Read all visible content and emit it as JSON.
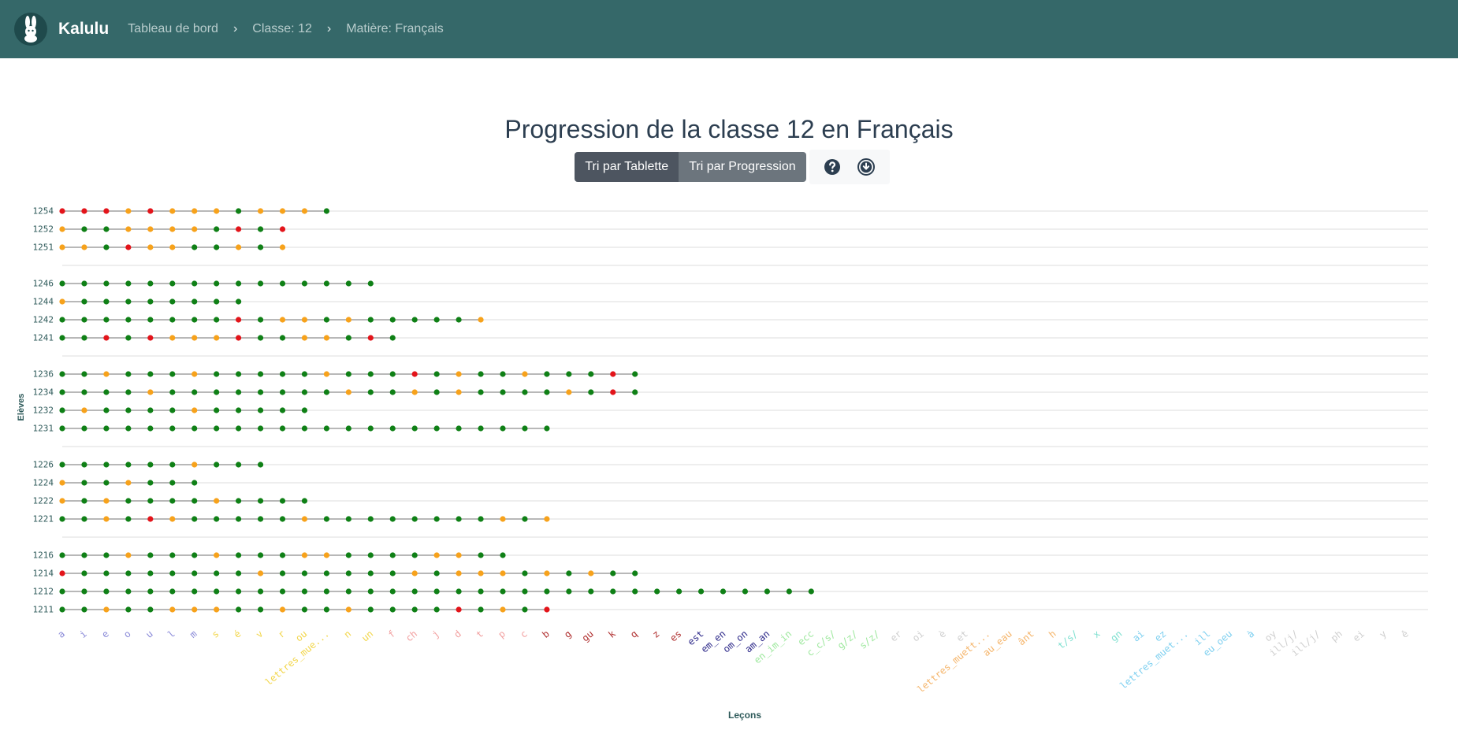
{
  "nav": {
    "brand": "Kalulu",
    "breadcrumbs": [
      "Tableau de bord",
      "Classe: 12",
      "Matière: Français"
    ],
    "separator": "›",
    "bg_color": "#356869"
  },
  "page": {
    "title": "Progression de la classe 12 en Français",
    "sort_buttons": [
      "Tri par Tablette",
      "Tri par Progression"
    ],
    "help_icon": "question-circle-icon",
    "download_icon": "download-circle-icon"
  },
  "chart_data": {
    "type": "scatter",
    "xlabel": "Leçons",
    "ylabel": "Elèves",
    "grid": true,
    "status_colors": {
      "red": "#e3141a",
      "orange": "#f7a21b",
      "green": "#0f8016"
    },
    "lessons": [
      {
        "label": "a",
        "color": "#8c8cd9"
      },
      {
        "label": "i",
        "color": "#8c8cd9"
      },
      {
        "label": "e",
        "color": "#8c8cd9"
      },
      {
        "label": "o",
        "color": "#8c8cd9"
      },
      {
        "label": "u",
        "color": "#8c8cd9"
      },
      {
        "label": "l",
        "color": "#8c8cd9"
      },
      {
        "label": "m",
        "color": "#8c8cd9"
      },
      {
        "label": "s",
        "color": "#f2d64b"
      },
      {
        "label": "é",
        "color": "#f2d64b"
      },
      {
        "label": "v",
        "color": "#f2d64b"
      },
      {
        "label": "r",
        "color": "#f2d64b"
      },
      {
        "label": "ou",
        "color": "#f2d64b"
      },
      {
        "label": "lettres_mue...",
        "color": "#f2d64b"
      },
      {
        "label": "n",
        "color": "#f2d64b"
      },
      {
        "label": "un",
        "color": "#f2d64b"
      },
      {
        "label": "f",
        "color": "#f2a0a0"
      },
      {
        "label": "ch",
        "color": "#f2a0a0"
      },
      {
        "label": "j",
        "color": "#f2a0a0"
      },
      {
        "label": "d",
        "color": "#f2a0a0"
      },
      {
        "label": "t",
        "color": "#f2a0a0"
      },
      {
        "label": "p",
        "color": "#f2a0a0"
      },
      {
        "label": "c",
        "color": "#f2a0a0"
      },
      {
        "label": "b",
        "color": "#b03030"
      },
      {
        "label": "g",
        "color": "#b03030"
      },
      {
        "label": "gu",
        "color": "#b03030"
      },
      {
        "label": "k",
        "color": "#b03030"
      },
      {
        "label": "q",
        "color": "#b03030"
      },
      {
        "label": "z",
        "color": "#b03030"
      },
      {
        "label": "es",
        "color": "#b03030"
      },
      {
        "label": "est",
        "color": "#2e2a8a"
      },
      {
        "label": "em_en",
        "color": "#2e2a8a"
      },
      {
        "label": "om_on",
        "color": "#2e2a8a"
      },
      {
        "label": "am_an",
        "color": "#2e2a8a"
      },
      {
        "label": "en_im_in",
        "color": "#9ee89e"
      },
      {
        "label": "ecc",
        "color": "#9ee89e"
      },
      {
        "label": "c_c/s/",
        "color": "#9ee89e"
      },
      {
        "label": "g/z/",
        "color": "#9ee89e"
      },
      {
        "label": "s/z/",
        "color": "#9ee89e"
      },
      {
        "label": "er",
        "color": "#cfcfcf"
      },
      {
        "label": "oi",
        "color": "#cfcfcf"
      },
      {
        "label": "è",
        "color": "#cfcfcf"
      },
      {
        "label": "et",
        "color": "#cfcfcf"
      },
      {
        "label": "lettres_muett...",
        "color": "#f5b56b"
      },
      {
        "label": "au_eau",
        "color": "#f5b56b"
      },
      {
        "label": "ânt",
        "color": "#f5b56b"
      },
      {
        "label": "h",
        "color": "#f5b56b"
      },
      {
        "label": "t/s/",
        "color": "#7fe0d0"
      },
      {
        "label": "x",
        "color": "#7fe0d0"
      },
      {
        "label": "gn",
        "color": "#7fe0d0"
      },
      {
        "label": "ai",
        "color": "#7fd0f0"
      },
      {
        "label": "ez",
        "color": "#7fd0f0"
      },
      {
        "label": "lettres_muet...",
        "color": "#7fd0f0"
      },
      {
        "label": "ill",
        "color": "#7fd0f0"
      },
      {
        "label": "eu_oeu",
        "color": "#7fd0f0"
      },
      {
        "label": "à",
        "color": "#7fd0f0"
      },
      {
        "label": "oy",
        "color": "#cfcfcf"
      },
      {
        "label": "ill/j/",
        "color": "#cfcfcf"
      },
      {
        "label": "ill/j/",
        "color": "#cfcfcf"
      },
      {
        "label": "ph",
        "color": "#cfcfcf"
      },
      {
        "label": "ei",
        "color": "#cfcfcf"
      },
      {
        "label": "y",
        "color": "#cfcfcf"
      },
      {
        "label": "ê",
        "color": "#cfcfcf"
      }
    ],
    "groups": [
      [
        {
          "student": "1254",
          "status": "RRROROOOGOOOG"
        },
        {
          "student": "1252",
          "status": "OGGOOOOGRGR"
        },
        {
          "student": "1251",
          "status": "OOGROOGGOGO"
        }
      ],
      [
        {
          "student": "1246",
          "status": "GGGGGGGGGGGGGGG"
        },
        {
          "student": "1244",
          "status": "OGGGGGGGG"
        },
        {
          "student": "1242",
          "status": "GGGGGGGGRGOOGOGGGGGO"
        },
        {
          "student": "1241",
          "status": "GGRGROOORGGOOGRG"
        }
      ],
      [
        {
          "student": "1236",
          "status": "GGOGGGOGGGGGOGGGRGOGGOGGGRG"
        },
        {
          "student": "1234",
          "status": "GGGGOGGGGGGGGOGGOGOGGGGOGRG"
        },
        {
          "student": "1232",
          "status": "GOGGGGOGGGGG"
        },
        {
          "student": "1231",
          "status": "GGGGGGGGGGGGGGGGGGGGGGG"
        }
      ],
      [
        {
          "student": "1226",
          "status": "GGGGGGOGGG"
        },
        {
          "student": "1224",
          "status": "OGGOGGG"
        },
        {
          "student": "1222",
          "status": "OGOGGGGOGGGG"
        },
        {
          "student": "1221",
          "status": "GGOGROGGGGGOGGGGGGGGOGO"
        }
      ],
      [
        {
          "student": "1216",
          "status": "GGGOGGGOGGGOOGGGGOOGG"
        },
        {
          "student": "1214",
          "status": "RGGGGGGGGOGGGGGGOGOOOGOGOGG"
        },
        {
          "student": "1212",
          "status": "GGGGGGGGGGGGGGGGGGGGGGGGGGGGGGGGGGG"
        },
        {
          "student": "1211",
          "status": "GGOGGOOOGGOGGOGGGGRGOGR"
        }
      ]
    ]
  }
}
